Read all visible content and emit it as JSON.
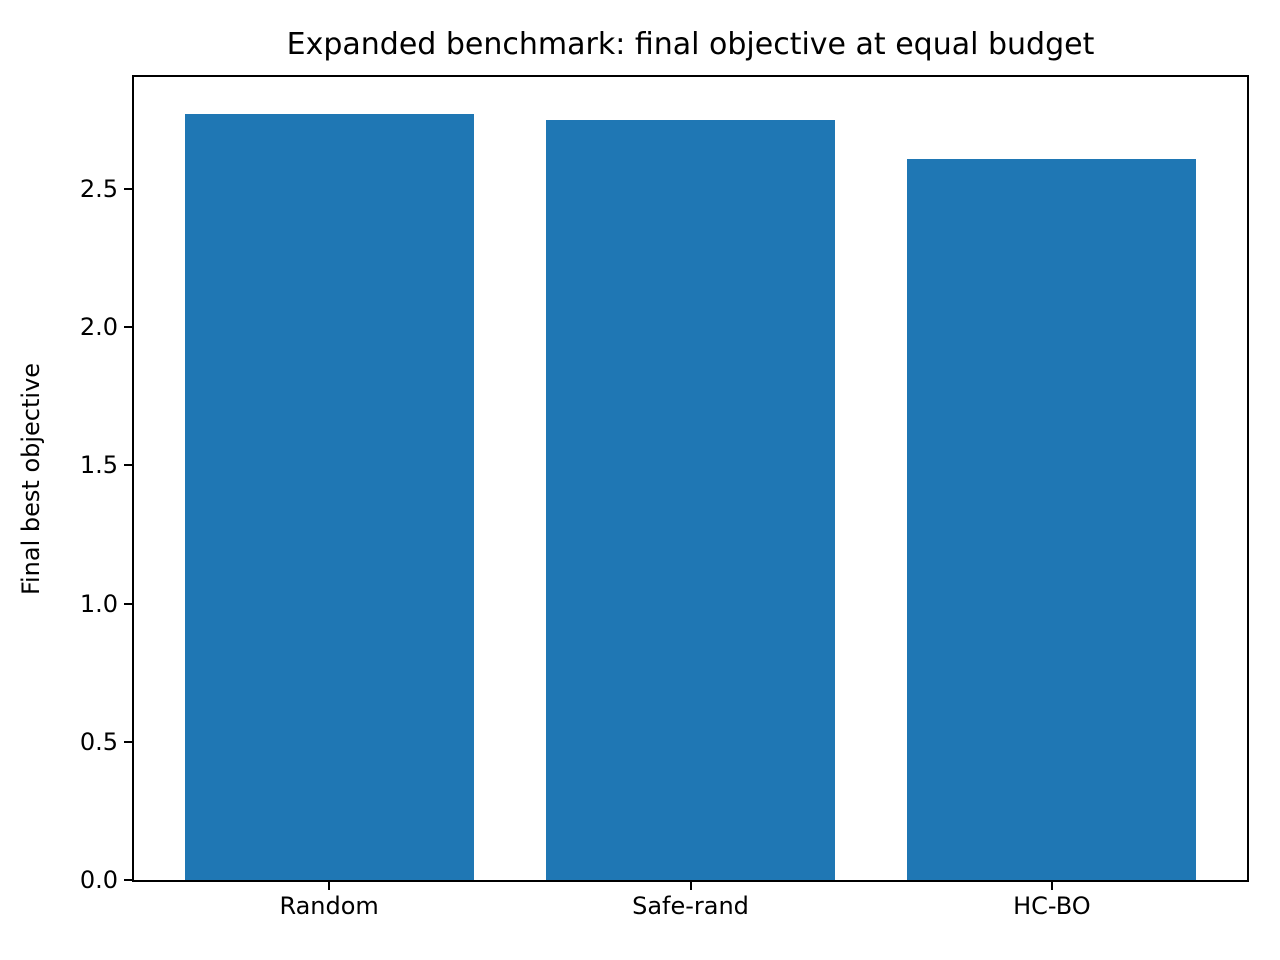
{
  "chart_data": {
    "type": "bar",
    "title": "Expanded benchmark: final objective at equal budget",
    "xlabel": "",
    "ylabel": "Final best objective",
    "categories": [
      "Random",
      "Safe-rand",
      "HC-BO"
    ],
    "values": [
      2.77,
      2.75,
      2.61
    ],
    "bar_color": "#1f77b4",
    "bar_width": 0.8,
    "xlim": [
      -0.54,
      2.54
    ],
    "ylim": [
      0,
      2.905
    ],
    "ytick_values": [
      0.0,
      0.5,
      1.0,
      1.5,
      2.0,
      2.5
    ],
    "ytick_labels": [
      "0.0",
      "0.5",
      "1.0",
      "1.5",
      "2.0",
      "2.5"
    ],
    "grid": false,
    "legend": "none",
    "spine_color": "#000000",
    "background_color": "#ffffff"
  }
}
